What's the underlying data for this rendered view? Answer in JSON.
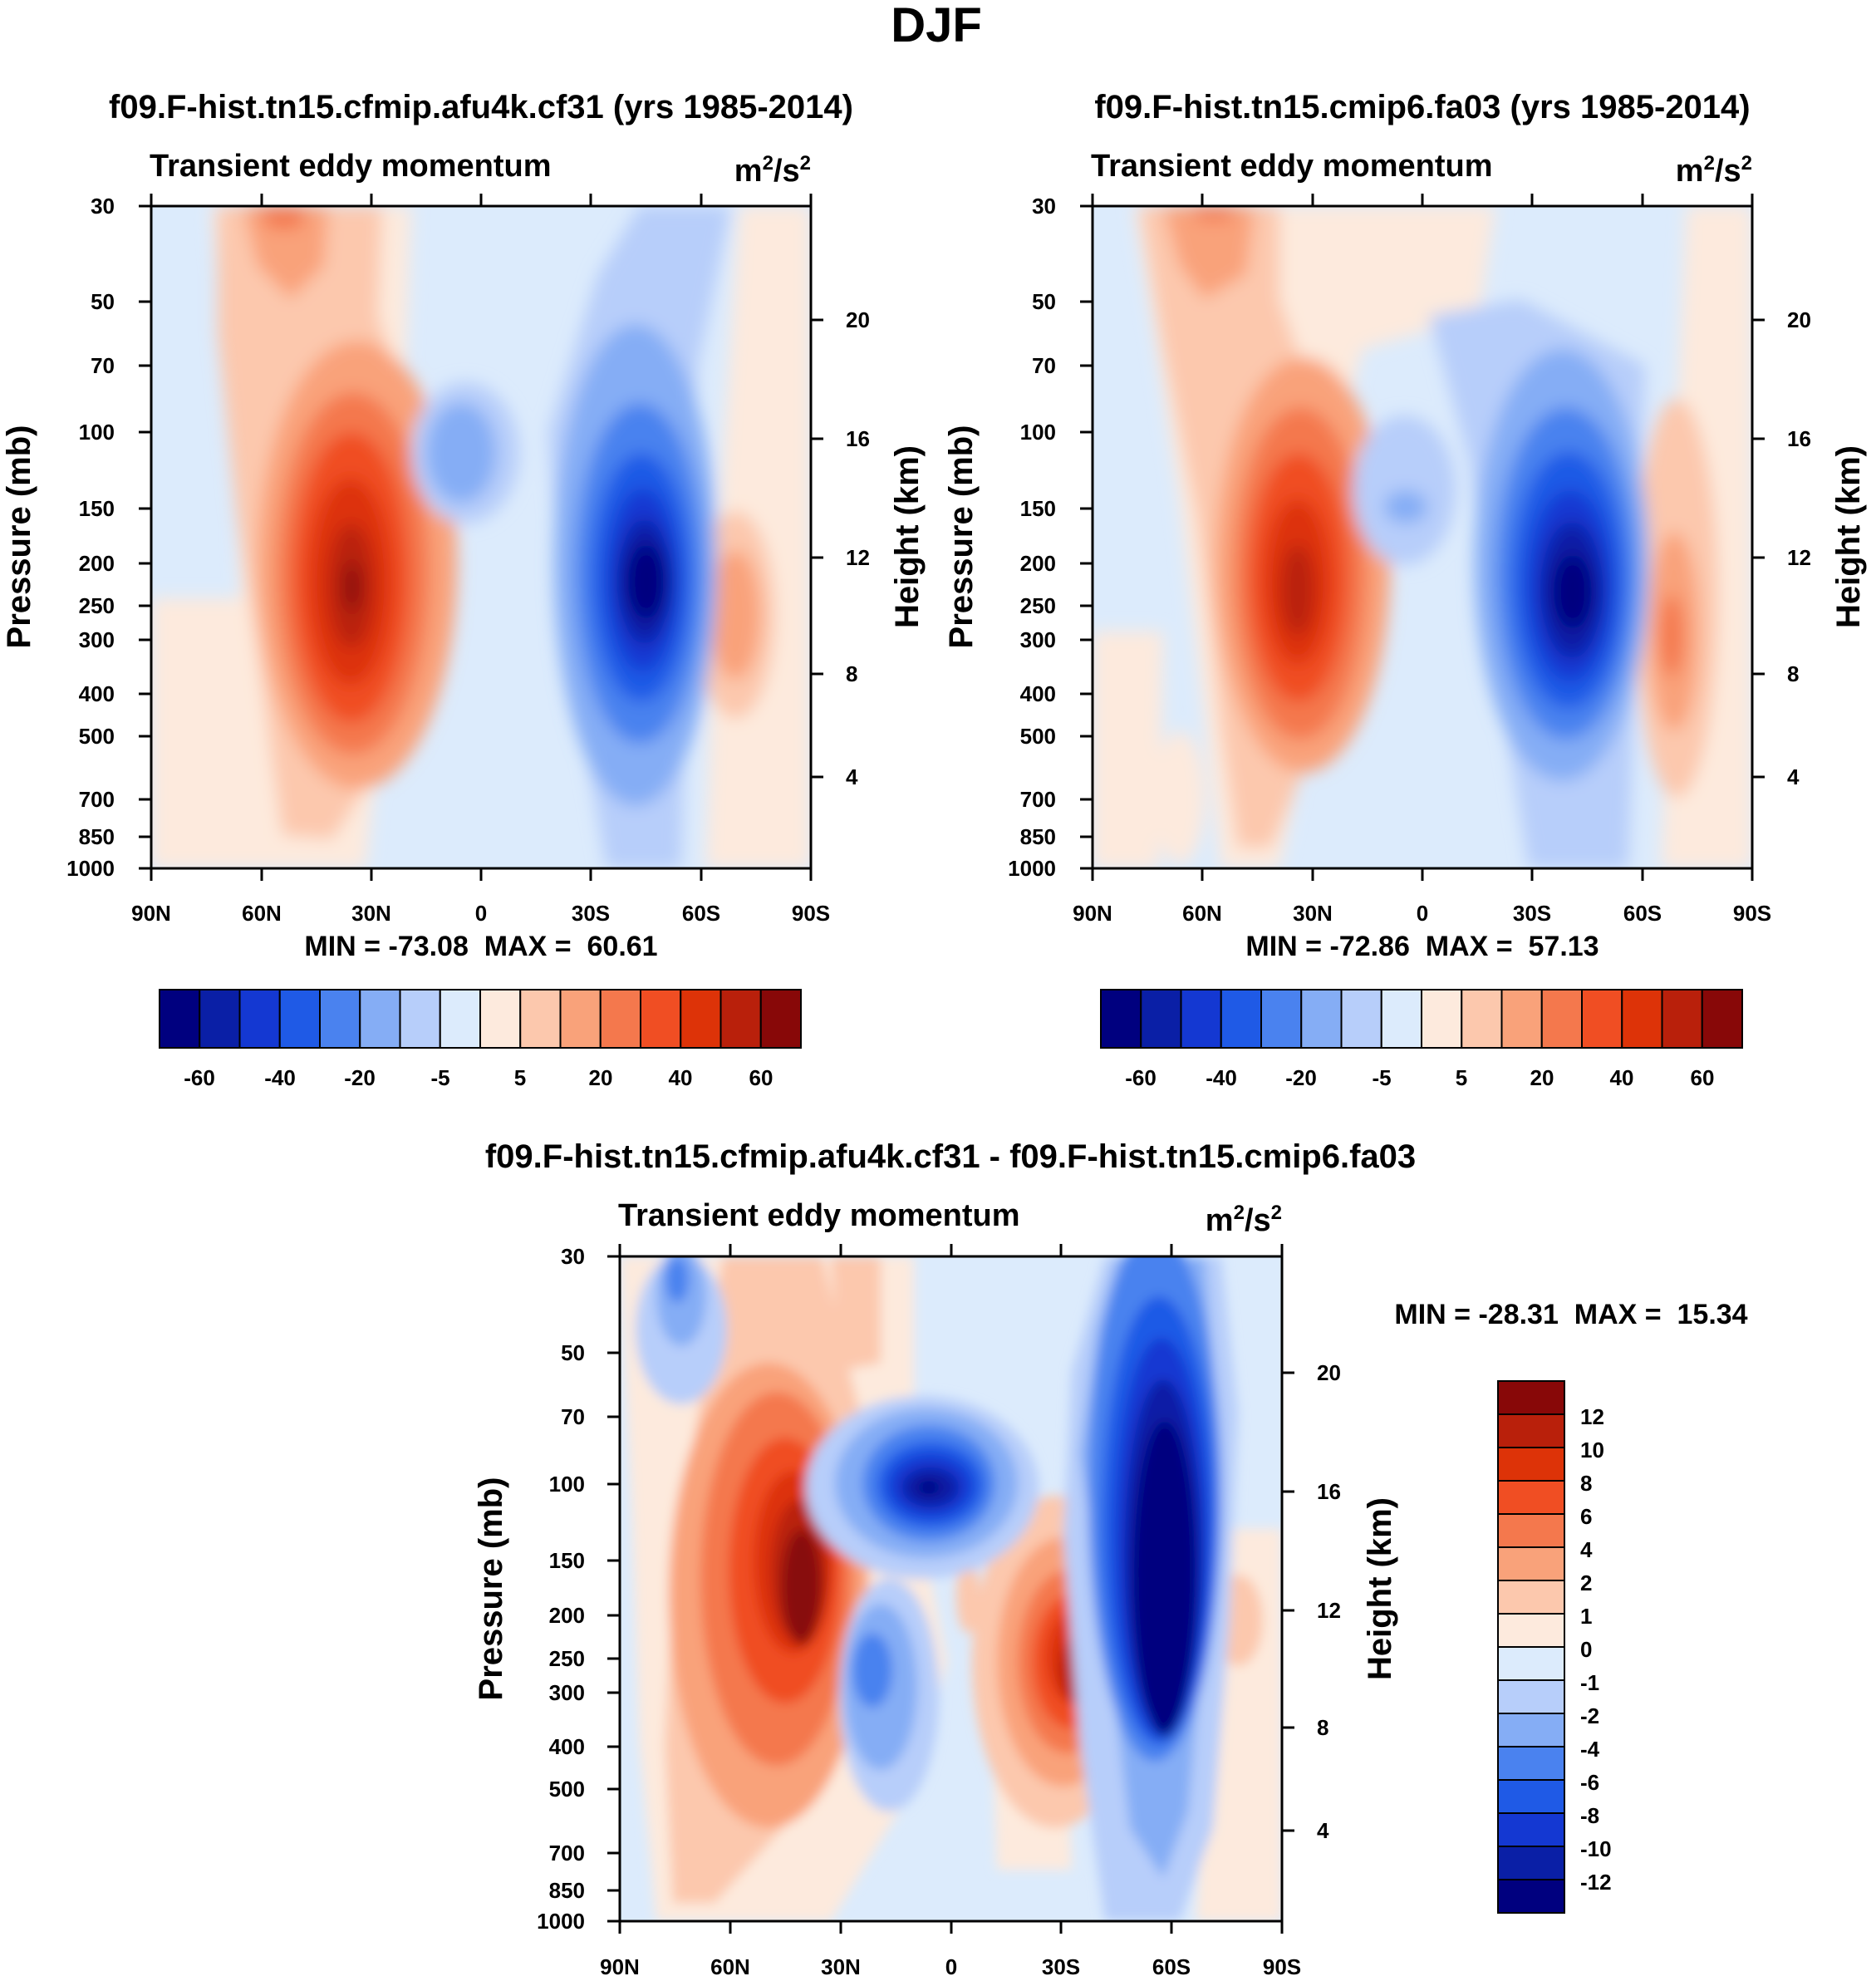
{
  "figure": {
    "title": "DJF"
  },
  "colors": {
    "main_levels": [
      "#00007f",
      "#0a1fa6",
      "#1438d2",
      "#1f5ae6",
      "#4a82ef",
      "#85adf5",
      "#b7cefa",
      "#dcebfc",
      "#fdeadd",
      "#fcc8ad",
      "#f9a27a",
      "#f4784d",
      "#f04e23",
      "#dd3308",
      "#b9200b",
      "#880808"
    ],
    "diff_levels": [
      "#00007f",
      "#0a1fa6",
      "#1438d2",
      "#1f5ae6",
      "#4a82ef",
      "#85adf5",
      "#b7cefa",
      "#dcebfc",
      "#fdeadd",
      "#fcc8ad",
      "#f9a27a",
      "#f4784d",
      "#f04e23",
      "#dd3308",
      "#b9200b",
      "#880808"
    ]
  },
  "chart_data": [
    {
      "type": "heatmap",
      "id": "panel_left",
      "title": "f09.F-hist.tn15.cfmip.afu4k.cf31 (yrs 1985-2014)",
      "subtitle": "Transient eddy momentum",
      "units": "m²/s²",
      "units_base": "m",
      "units_sup1": "2",
      "units_mid": "/s",
      "units_sup2": "2",
      "ylabel": "Pressure (mb)",
      "ylabel_right": "Height (km)",
      "x_ticks": [
        "90N",
        "60N",
        "30N",
        "0",
        "30S",
        "60S",
        "90S"
      ],
      "y_ticks": [
        "30",
        "50",
        "70",
        "100",
        "150",
        "200",
        "250",
        "300",
        "400",
        "500",
        "700",
        "850",
        "1000"
      ],
      "y_ticks_right": [
        "20",
        "16",
        "12",
        "8",
        "4"
      ],
      "stats": "MIN = -73.08  MAX =  60.61",
      "min": -73.08,
      "max": 60.61,
      "colorbar_labels": [
        "-60",
        "-40",
        "-20",
        "-5",
        "5",
        "20",
        "40",
        "60"
      ]
    },
    {
      "type": "heatmap",
      "id": "panel_right",
      "title": "f09.F-hist.tn15.cmip6.fa03 (yrs 1985-2014)",
      "subtitle": "Transient eddy momentum",
      "units": "m²/s²",
      "units_base": "m",
      "units_sup1": "2",
      "units_mid": "/s",
      "units_sup2": "2",
      "ylabel": "Pressure (mb)",
      "ylabel_right": "Height (km)",
      "x_ticks": [
        "90N",
        "60N",
        "30N",
        "0",
        "30S",
        "60S",
        "90S"
      ],
      "y_ticks": [
        "30",
        "50",
        "70",
        "100",
        "150",
        "200",
        "250",
        "300",
        "400",
        "500",
        "700",
        "850",
        "1000"
      ],
      "y_ticks_right": [
        "20",
        "16",
        "12",
        "8",
        "4"
      ],
      "stats": "MIN = -72.86  MAX =  57.13",
      "min": -72.86,
      "max": 57.13,
      "colorbar_labels": [
        "-60",
        "-40",
        "-20",
        "-5",
        "5",
        "20",
        "40",
        "60"
      ]
    },
    {
      "type": "heatmap",
      "id": "panel_diff",
      "title": "f09.F-hist.tn15.cfmip.afu4k.cf31 - f09.F-hist.tn15.cmip6.fa03",
      "subtitle": "Transient eddy momentum",
      "units": "m²/s²",
      "units_base": "m",
      "units_sup1": "2",
      "units_mid": "/s",
      "units_sup2": "2",
      "ylabel": "Pressure (mb)",
      "ylabel_right": "Height (km)",
      "x_ticks": [
        "90N",
        "60N",
        "30N",
        "0",
        "30S",
        "60S",
        "90S"
      ],
      "y_ticks": [
        "30",
        "50",
        "70",
        "100",
        "150",
        "200",
        "250",
        "300",
        "400",
        "500",
        "700",
        "850",
        "1000"
      ],
      "y_ticks_right": [
        "20",
        "16",
        "12",
        "8",
        "4"
      ],
      "stats": "MIN = -28.31  MAX =  15.34",
      "min": -28.31,
      "max": 15.34,
      "colorbar_labels": [
        "12",
        "10",
        "8",
        "6",
        "4",
        "2",
        "1",
        "0",
        "-1",
        "-2",
        "-4",
        "-6",
        "-8",
        "-10",
        "-12"
      ]
    }
  ]
}
